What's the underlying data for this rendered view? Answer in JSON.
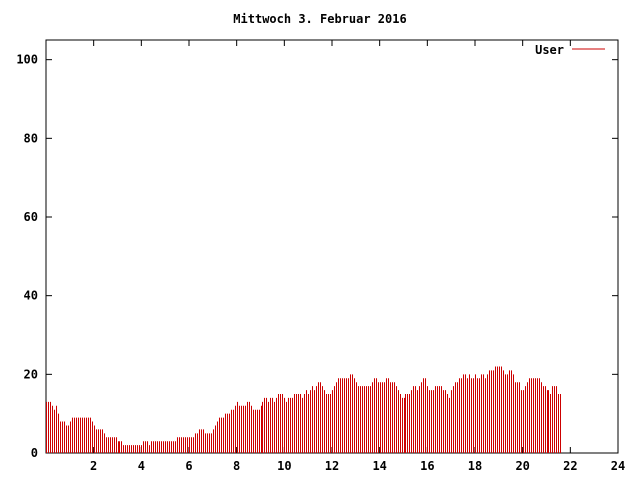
{
  "chart_data": {
    "type": "bar",
    "title": "Mittwoch 3. Februar 2016",
    "xlabel": "",
    "ylabel": "",
    "xlim": [
      0,
      24
    ],
    "ylim": [
      0,
      105
    ],
    "xticks": [
      2,
      4,
      6,
      8,
      10,
      12,
      14,
      16,
      18,
      20,
      22,
      24
    ],
    "xtick_labels": [
      "2",
      "4",
      "6",
      "8",
      "10",
      "12",
      "14",
      "16",
      "18",
      "20",
      "22",
      "24"
    ],
    "yticks": [
      0,
      20,
      40,
      60,
      80,
      100
    ],
    "ytick_labels": [
      "0",
      "20",
      "40",
      "60",
      "80",
      "100"
    ],
    "legend_position": "top-right",
    "series": [
      {
        "name": "User",
        "color": "#cc0000",
        "interval_minutes": 5,
        "values": [
          13,
          13,
          13,
          12,
          11,
          12,
          10,
          8,
          8,
          8,
          7,
          7,
          8,
          9,
          9,
          9,
          9,
          9,
          9,
          9,
          9,
          9,
          9,
          8,
          7,
          6,
          6,
          6,
          6,
          5,
          4,
          4,
          4,
          4,
          4,
          4,
          3,
          3,
          3,
          2,
          2,
          2,
          2,
          2,
          2,
          2,
          2,
          2,
          2,
          3,
          3,
          3,
          2,
          3,
          3,
          3,
          3,
          3,
          3,
          3,
          3,
          3,
          3,
          3,
          3,
          3,
          4,
          4,
          4,
          4,
          4,
          4,
          4,
          4,
          4,
          5,
          5,
          6,
          6,
          6,
          5,
          5,
          5,
          5,
          6,
          7,
          8,
          9,
          9,
          9,
          10,
          10,
          10,
          11,
          11,
          12,
          13,
          12,
          12,
          12,
          12,
          13,
          13,
          12,
          11,
          11,
          11,
          11,
          12,
          13,
          14,
          14,
          13,
          14,
          14,
          13,
          14,
          15,
          15,
          15,
          14,
          13,
          14,
          14,
          14,
          15,
          15,
          15,
          15,
          14,
          15,
          16,
          15,
          16,
          17,
          16,
          17,
          18,
          18,
          17,
          16,
          15,
          15,
          15,
          16,
          17,
          18,
          19,
          19,
          19,
          19,
          19,
          19,
          20,
          20,
          19,
          18,
          17,
          17,
          17,
          17,
          17,
          17,
          17,
          18,
          19,
          19,
          18,
          18,
          18,
          18,
          19,
          19,
          18,
          18,
          18,
          17,
          16,
          15,
          14,
          14,
          15,
          15,
          15,
          16,
          17,
          17,
          16,
          17,
          18,
          19,
          19,
          17,
          16,
          16,
          16,
          17,
          17,
          17,
          17,
          16,
          16,
          15,
          14,
          16,
          17,
          18,
          18,
          19,
          19,
          20,
          20,
          19,
          20,
          19,
          19,
          20,
          19,
          19,
          20,
          20,
          19,
          20,
          21,
          21,
          21,
          22,
          22,
          22,
          22,
          21,
          20,
          20,
          21,
          21,
          20,
          18,
          18,
          18,
          16,
          16,
          17,
          18,
          19,
          19,
          19,
          19,
          19,
          19,
          18,
          17,
          17,
          16,
          16,
          15,
          17,
          17,
          17,
          15,
          15
        ]
      }
    ]
  }
}
